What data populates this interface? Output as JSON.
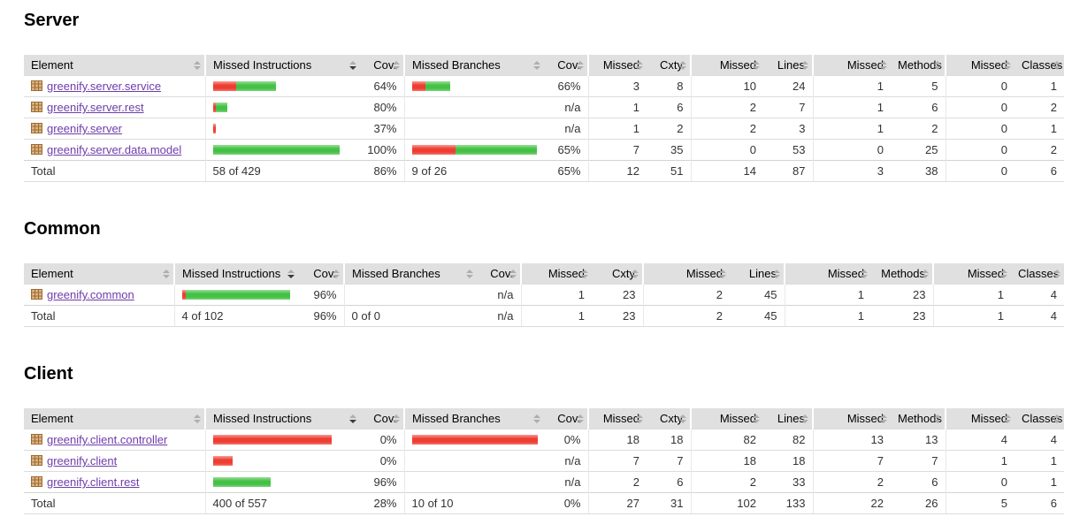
{
  "colors": {
    "bar_red": "#ee3d32",
    "bar_green": "#44c144",
    "header_background": "#e0e0e0",
    "link_purple": "#6E3CAA"
  },
  "icons": {
    "row_icon": "package-icon",
    "header_icon": "sort-arrows-icon"
  },
  "sort_state": {
    "column": "Missed Instructions",
    "direction": "desc"
  },
  "columns": [
    {
      "label": "Element",
      "sorted": null
    },
    {
      "label": "Missed Instructions",
      "sorted": "desc"
    },
    {
      "label": "Cov.",
      "sorted": null
    },
    {
      "label": "Missed Branches",
      "sorted": null
    },
    {
      "label": "Cov.",
      "sorted": null
    },
    {
      "label": "Missed",
      "sorted": null
    },
    {
      "label": "Cxty",
      "sorted": null
    },
    {
      "label": "Missed",
      "sorted": null
    },
    {
      "label": "Lines",
      "sorted": null
    },
    {
      "label": "Missed",
      "sorted": null
    },
    {
      "label": "Methods",
      "sorted": null
    },
    {
      "label": "Missed",
      "sorted": null
    },
    {
      "label": "Classes",
      "sorted": null
    }
  ],
  "sections": [
    {
      "title": "Server",
      "rows": [
        {
          "element": "greenify.server.service",
          "instr_bar": {
            "red": 26,
            "green": 45
          },
          "instr_cov": "64%",
          "branch_bar": {
            "red": 15,
            "green": 28
          },
          "branch_cov": "66%",
          "missed": "3",
          "cxty": "8",
          "missed_lines": "10",
          "lines": "24",
          "missed_methods": "1",
          "methods": "5",
          "missed_classes": "0",
          "classes": "1"
        },
        {
          "element": "greenify.server.rest",
          "instr_bar": {
            "red": 3,
            "green": 13
          },
          "instr_cov": "80%",
          "branch_bar": null,
          "branch_cov": "n/a",
          "missed": "1",
          "cxty": "6",
          "missed_lines": "2",
          "lines": "7",
          "missed_methods": "1",
          "methods": "6",
          "missed_classes": "0",
          "classes": "2"
        },
        {
          "element": "greenify.server",
          "instr_bar": {
            "red": 3,
            "green": 0
          },
          "instr_cov": "37%",
          "branch_bar": null,
          "branch_cov": "n/a",
          "missed": "1",
          "cxty": "2",
          "missed_lines": "2",
          "lines": "3",
          "missed_methods": "1",
          "methods": "2",
          "missed_classes": "0",
          "classes": "1"
        },
        {
          "element": "greenify.server.data.model",
          "instr_bar": {
            "red": 0,
            "green": 143
          },
          "instr_cov": "100%",
          "branch_bar": {
            "red": 49,
            "green": 92
          },
          "branch_cov": "65%",
          "missed": "7",
          "cxty": "35",
          "missed_lines": "0",
          "lines": "53",
          "missed_methods": "0",
          "methods": "25",
          "missed_classes": "0",
          "classes": "2"
        }
      ],
      "total": {
        "label": "Total",
        "instr": "58 of 429",
        "instr_cov": "86%",
        "branch": "9 of 26",
        "branch_cov": "65%",
        "missed": "12",
        "cxty": "51",
        "missed_lines": "14",
        "lines": "87",
        "missed_methods": "3",
        "methods": "38",
        "missed_classes": "0",
        "classes": "6"
      }
    },
    {
      "title": "Common",
      "rows": [
        {
          "element": "greenify.common",
          "instr_bar": {
            "red": 4,
            "green": 118
          },
          "instr_cov": "96%",
          "branch_bar": null,
          "branch_cov": "n/a",
          "missed": "1",
          "cxty": "23",
          "missed_lines": "2",
          "lines": "45",
          "missed_methods": "1",
          "methods": "23",
          "missed_classes": "1",
          "classes": "4"
        }
      ],
      "total": {
        "label": "Total",
        "instr": "4 of 102",
        "instr_cov": "96%",
        "branch": "0 of 0",
        "branch_cov": "n/a",
        "missed": "1",
        "cxty": "23",
        "missed_lines": "2",
        "lines": "45",
        "missed_methods": "1",
        "methods": "23",
        "missed_classes": "1",
        "classes": "4"
      }
    },
    {
      "title": "Client",
      "rows": [
        {
          "element": "greenify.client.controller",
          "instr_bar": {
            "red": 134,
            "green": 0
          },
          "instr_cov": "0%",
          "branch_bar": {
            "red": 142,
            "green": 0
          },
          "branch_cov": "0%",
          "missed": "18",
          "cxty": "18",
          "missed_lines": "82",
          "lines": "82",
          "missed_methods": "13",
          "methods": "13",
          "missed_classes": "4",
          "classes": "4"
        },
        {
          "element": "greenify.client",
          "instr_bar": {
            "red": 22,
            "green": 0
          },
          "instr_cov": "0%",
          "branch_bar": null,
          "branch_cov": "n/a",
          "missed": "7",
          "cxty": "7",
          "missed_lines": "18",
          "lines": "18",
          "missed_methods": "7",
          "methods": "7",
          "missed_classes": "1",
          "classes": "1"
        },
        {
          "element": "greenify.client.rest",
          "instr_bar": {
            "red": 0,
            "green": 65
          },
          "instr_cov": "96%",
          "branch_bar": null,
          "branch_cov": "n/a",
          "missed": "2",
          "cxty": "6",
          "missed_lines": "2",
          "lines": "33",
          "missed_methods": "2",
          "methods": "6",
          "missed_classes": "0",
          "classes": "1"
        }
      ],
      "total": {
        "label": "Total",
        "instr": "400 of 557",
        "instr_cov": "28%",
        "branch": "10 of 10",
        "branch_cov": "0%",
        "missed": "27",
        "cxty": "31",
        "missed_lines": "102",
        "lines": "133",
        "missed_methods": "22",
        "methods": "26",
        "missed_classes": "5",
        "classes": "6"
      }
    }
  ]
}
